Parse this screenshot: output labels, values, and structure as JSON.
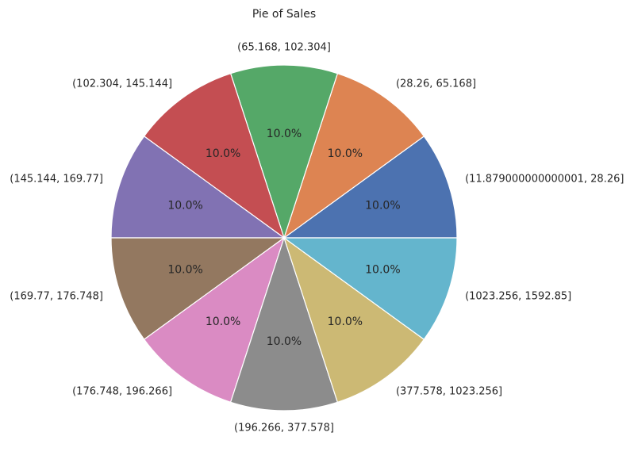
{
  "chart_data": {
    "type": "pie",
    "title": "Pie of Sales",
    "categories": [
      "(11.879000000000001, 28.26]",
      "(28.26, 65.168]",
      "(65.168, 102.304]",
      "(102.304, 145.144]",
      "(145.144, 169.77]",
      "(169.77, 176.748]",
      "(176.748, 196.266]",
      "(196.266, 377.578]",
      "(377.578, 1023.256]",
      "(1023.256, 1592.85]"
    ],
    "values": [
      10,
      10,
      10,
      10,
      10,
      10,
      10,
      10,
      10,
      10
    ],
    "percent_labels": [
      "10.0%",
      "10.0%",
      "10.0%",
      "10.0%",
      "10.0%",
      "10.0%",
      "10.0%",
      "10.0%",
      "10.0%",
      "10.0%"
    ],
    "colors": [
      "#4c72b0",
      "#dd8452",
      "#55a868",
      "#c44e52",
      "#8172b3",
      "#937860",
      "#da8bc3",
      "#8c8c8c",
      "#ccb974",
      "#64b5cd"
    ],
    "legend": false
  }
}
